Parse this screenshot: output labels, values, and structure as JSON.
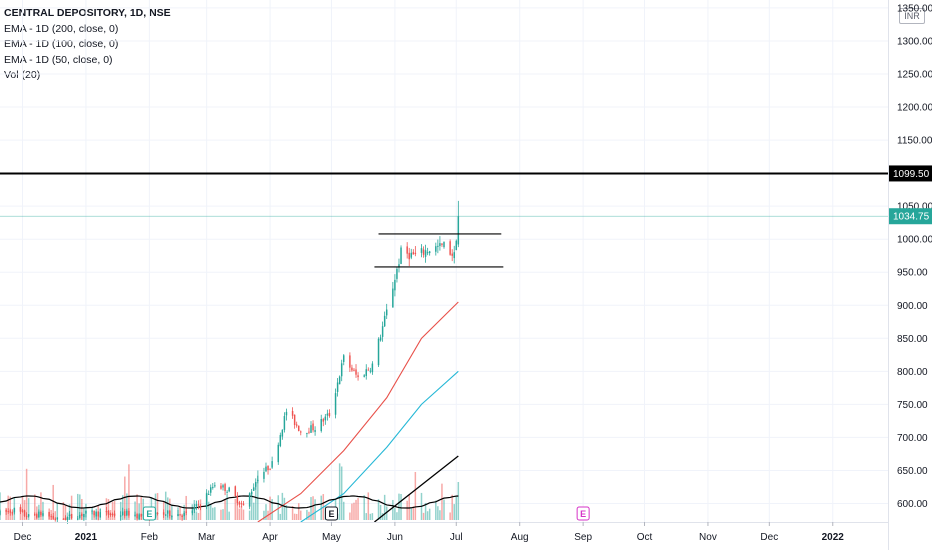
{
  "legend": {
    "symbol": "CENTRAL DEPOSITORY, 1D, NSE",
    "ema200": "EMA - 1D (200, close, 0)",
    "ema100": "EMA - 1D (100, close, 0)",
    "ema50": "EMA - 1D (50, close, 0)",
    "vol": "Vol (20)"
  },
  "currency_label": "INR",
  "colors": {
    "up": "#26a69a",
    "down": "#ef5350",
    "ema_red": "#e8514a",
    "ema_cyan": "#26b8d6",
    "price_line": "#26a69a",
    "level_line": "#000000",
    "earnings_teal": "#26a69a",
    "earnings_magenta": "#d633c8"
  },
  "chart_data": {
    "type": "candlestick",
    "title": "CENTRAL DEPOSITORY, 1D, NSE",
    "y_axis": {
      "ticks": [
        600,
        650,
        700,
        750,
        800,
        850,
        900,
        950,
        1000,
        1050,
        1100,
        1150,
        1200,
        1250,
        1300,
        1350
      ],
      "tick_labels": [
        "600.00",
        "650.00",
        "700.00",
        "750.00",
        "800.00",
        "850.00",
        "900.00",
        "950.00",
        "1000.00",
        "1050.00",
        "1100.00",
        "1150.00",
        "1200.00",
        "1250.00",
        "1300.00",
        "1350.00"
      ],
      "ylim": [
        572,
        1362
      ]
    },
    "x_axis": {
      "labels": [
        "Dec",
        "2021",
        "Feb",
        "Mar",
        "Apr",
        "May",
        "Jun",
        "Jul",
        "Aug",
        "Sep",
        "Oct",
        "Nov",
        "Dec",
        "2022"
      ],
      "label_dates": [
        "2020-12-01",
        "2021-01-01",
        "2021-02-01",
        "2021-03-01",
        "2021-04-01",
        "2021-05-01",
        "2021-06-01",
        "2021-07-01",
        "2021-08-01",
        "2021-09-01",
        "2021-10-01",
        "2021-11-01",
        "2021-12-01",
        "2022-01-01"
      ],
      "xlim": [
        "2020-11-20",
        "2022-01-28"
      ]
    },
    "last_price": 1034.75,
    "last_price_label": "1034.75",
    "level": 1099.5,
    "level_label": "1099.50",
    "price_series": [
      [
        "2020-11-20",
        585
      ],
      [
        "2020-11-27",
        590
      ],
      [
        "2020-12-04",
        580
      ],
      [
        "2020-12-11",
        585
      ],
      [
        "2020-12-18",
        575
      ],
      [
        "2020-12-25",
        580
      ],
      [
        "2021-01-01",
        585
      ],
      [
        "2021-01-08",
        585
      ],
      [
        "2021-01-15",
        583
      ],
      [
        "2021-01-22",
        585
      ],
      [
        "2021-01-29",
        580
      ],
      [
        "2021-02-05",
        583
      ],
      [
        "2021-02-12",
        585
      ],
      [
        "2021-02-19",
        583
      ],
      [
        "2021-02-26",
        600
      ],
      [
        "2021-03-05",
        630
      ],
      [
        "2021-03-12",
        620
      ],
      [
        "2021-03-19",
        595
      ],
      [
        "2021-03-26",
        640
      ],
      [
        "2021-04-02",
        660
      ],
      [
        "2021-04-09",
        740
      ],
      [
        "2021-04-16",
        710
      ],
      [
        "2021-04-23",
        715
      ],
      [
        "2021-04-30",
        735
      ],
      [
        "2021-05-07",
        820
      ],
      [
        "2021-05-14",
        790
      ],
      [
        "2021-05-21",
        810
      ],
      [
        "2021-05-28",
        890
      ],
      [
        "2021-06-04",
        980
      ],
      [
        "2021-06-11",
        975
      ],
      [
        "2021-06-18",
        985
      ],
      [
        "2021-06-25",
        990
      ],
      [
        "2021-06-30",
        975
      ],
      [
        "2021-07-02",
        1034.75
      ]
    ],
    "ema_50": [
      [
        "2021-03-26",
        572
      ],
      [
        "2021-04-16",
        615
      ],
      [
        "2021-05-07",
        680
      ],
      [
        "2021-05-28",
        760
      ],
      [
        "2021-06-14",
        850
      ],
      [
        "2021-07-02",
        905
      ]
    ],
    "ema_100": [
      [
        "2021-04-16",
        572
      ],
      [
        "2021-05-07",
        615
      ],
      [
        "2021-05-28",
        685
      ],
      [
        "2021-06-14",
        750
      ],
      [
        "2021-07-02",
        800
      ]
    ],
    "annotations": [
      {
        "type": "hline",
        "y": 1099.5
      },
      {
        "type": "segment",
        "from": [
          "2021-05-24",
          1008
        ],
        "to": [
          "2021-07-23",
          1008
        ]
      },
      {
        "type": "segment",
        "from": [
          "2021-05-22",
          958
        ],
        "to": [
          "2021-07-24",
          958
        ]
      }
    ],
    "earnings_markers": [
      {
        "label": "E",
        "date": "2021-02-01",
        "style": "teal"
      },
      {
        "label": "E",
        "date": "2021-05-01",
        "style": "dark"
      },
      {
        "label": "E",
        "date": "2021-09-01",
        "style": "magenta"
      }
    ]
  }
}
